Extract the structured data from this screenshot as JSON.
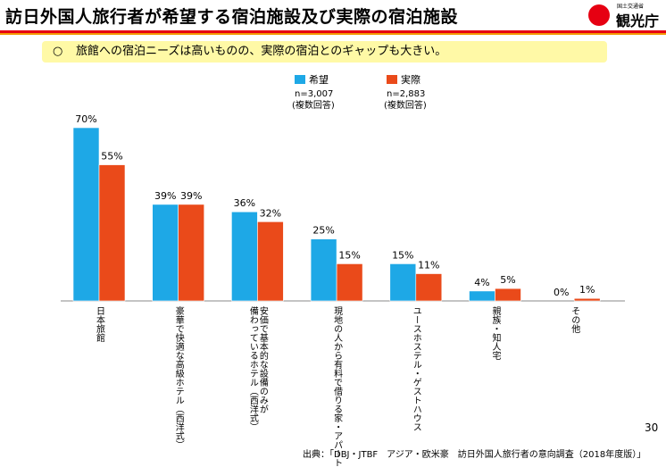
{
  "page": {
    "title": "訪日外国人旅行者が希望する宿泊施設及び実際の宿泊施設",
    "brand_small": "国土交通省",
    "brand_main": "観光庁",
    "note_mark": "○",
    "note_text": "旅館への宿泊ニーズは高いものの、実際の宿泊とのギャップも大きい。",
    "page_number": "30",
    "source": "出典：「DBJ・JTBF　アジア・欧米豪　訪日外国人旅行者の意向調査（2018年度版）」"
  },
  "chart_data": {
    "type": "bar",
    "categories": [
      "日本旅館",
      "豪華で快適な高級ホテル（西洋式）",
      "安価で基本的な設備のみが備わっているホテル（西洋式）",
      "現地の人から有料で借りる家・アパート",
      "ユースホステル・ゲストハウス",
      "親族・知人宅",
      "その他"
    ],
    "category_lines": [
      [
        "日本旅館"
      ],
      [
        "豪華で快適な高級ホテル（西洋式）"
      ],
      [
        "安価で基本的な設備のみが",
        "備わっているホテル（西洋式）"
      ],
      [
        "現地の人から有料で借りる家・アパート"
      ],
      [
        "ユースホステル・ゲストハウス"
      ],
      [
        "親族・知人宅"
      ],
      [
        "その他"
      ]
    ],
    "series": [
      {
        "name": "希望",
        "n": "n=3,007",
        "note": "(複数回答)",
        "color": "#1ea8e6",
        "values": [
          70,
          39,
          36,
          25,
          15,
          4,
          0
        ]
      },
      {
        "name": "実際",
        "n": "n=2,883",
        "note": "(複数回答)",
        "color": "#ea4a1a",
        "values": [
          55,
          39,
          32,
          15,
          11,
          5,
          1
        ]
      }
    ],
    "value_format": "{v}%",
    "ylim": [
      0,
      70
    ],
    "grid": false,
    "legend_position": "top-center"
  }
}
